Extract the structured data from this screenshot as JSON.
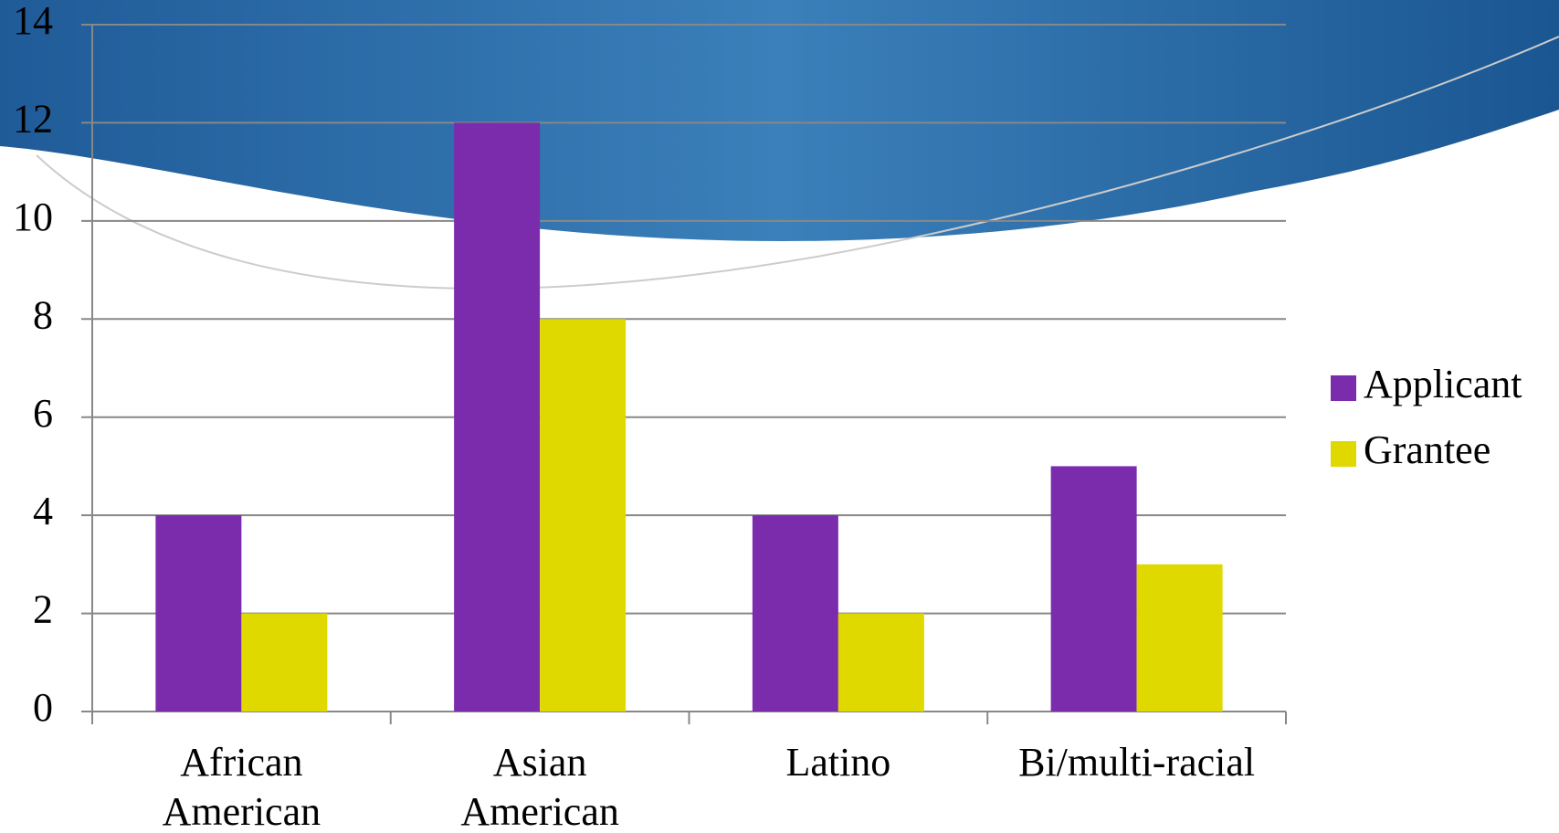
{
  "chart_data": {
    "type": "bar",
    "categories": [
      "African American",
      "Asian American",
      "Latino",
      "Bi/multi-racial"
    ],
    "series": [
      {
        "name": "Applicant",
        "color": "#7b2cad",
        "values": [
          4,
          12,
          4,
          5
        ]
      },
      {
        "name": "Grantee",
        "color": "#dfd900",
        "values": [
          2,
          8,
          2,
          3
        ]
      }
    ],
    "ylim": [
      0,
      14
    ],
    "yticks": [
      0,
      2,
      4,
      6,
      8,
      10,
      12,
      14
    ],
    "grid": true,
    "legend": "right"
  }
}
